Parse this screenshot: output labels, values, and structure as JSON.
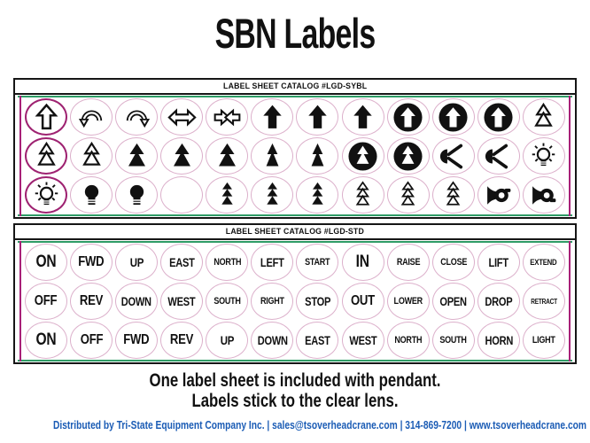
{
  "title": "SBN Labels",
  "colors": {
    "trim_green": "#2f9c66",
    "trim_magenta": "#a82078",
    "ring_pink": "#dcb0cb",
    "ring_bold_magenta": "#9e2271",
    "footer_blue": "#1b5cb5",
    "ink": "#111111"
  },
  "sheets": [
    {
      "header": "LABEL SHEET CATALOG #LGD-SYBL",
      "type": "symbols",
      "rows": [
        [
          {
            "icon": "arrow-up-outline",
            "ring": "bold"
          },
          {
            "icon": "arrow-uturn-left"
          },
          {
            "icon": "arrow-uturn-right"
          },
          {
            "icon": "arrow-left-right"
          },
          {
            "icon": "arrows-converge"
          },
          {
            "icon": "arrow-up-solid"
          },
          {
            "icon": "arrow-up-solid"
          },
          {
            "icon": "arrow-up-solid"
          },
          {
            "icon": "arrow-up-inverted"
          },
          {
            "icon": "arrow-up-inverted"
          },
          {
            "icon": "arrow-up-inverted"
          },
          {
            "icon": "double-triangle-outline"
          }
        ],
        [
          {
            "icon": "double-triangle-outline",
            "ring": "bold"
          },
          {
            "icon": "double-triangle-outline"
          },
          {
            "icon": "double-triangle-solid"
          },
          {
            "icon": "double-triangle-solid"
          },
          {
            "icon": "double-triangle-solid"
          },
          {
            "icon": "double-triangle-solid-narrow"
          },
          {
            "icon": "double-triangle-solid-narrow"
          },
          {
            "icon": "double-triangle-inverted"
          },
          {
            "icon": "double-triangle-inverted"
          },
          {
            "icon": "horn-blast"
          },
          {
            "icon": "horn-blast"
          },
          {
            "icon": "bulb-rays-outline"
          }
        ],
        [
          {
            "icon": "bulb-rays-outline",
            "ring": "bold"
          },
          {
            "icon": "bulb-solid"
          },
          {
            "icon": "bulb-solid"
          },
          {
            "icon": "blank"
          },
          {
            "icon": "triple-triangle-solid"
          },
          {
            "icon": "triple-triangle-solid"
          },
          {
            "icon": "triple-triangle-solid"
          },
          {
            "icon": "triple-triangle-outline"
          },
          {
            "icon": "triple-triangle-outline"
          },
          {
            "icon": "triple-triangle-outline"
          },
          {
            "icon": "horn"
          },
          {
            "icon": "horn-flipped"
          }
        ]
      ]
    },
    {
      "header": "LABEL SHEET CATALOG #LGD-STD",
      "type": "text",
      "rows": [
        [
          "ON",
          "FWD",
          "UP",
          "EAST",
          "NORTH",
          "LEFT",
          "START",
          "IN",
          "RAISE",
          "CLOSE",
          "LIFT",
          "EXTEND"
        ],
        [
          "OFF",
          "REV",
          "DOWN",
          "WEST",
          "SOUTH",
          "RIGHT",
          "STOP",
          "OUT",
          "LOWER",
          "OPEN",
          "DROP",
          "RETRACT"
        ],
        [
          "ON",
          "OFF",
          "FWD",
          "REV",
          "UP",
          "DOWN",
          "EAST",
          "WEST",
          "NORTH",
          "SOUTH",
          "HORN",
          "LIGHT"
        ]
      ]
    }
  ],
  "caption": [
    "One label sheet is included with pendant.",
    "Labels stick to the clear lens."
  ],
  "footer": "Distributed by Tri-State Equipment Company Inc.  |  sales@tsoverheadcrane.com  |  314-869-7200  |  www.tsoverheadcrane.com"
}
